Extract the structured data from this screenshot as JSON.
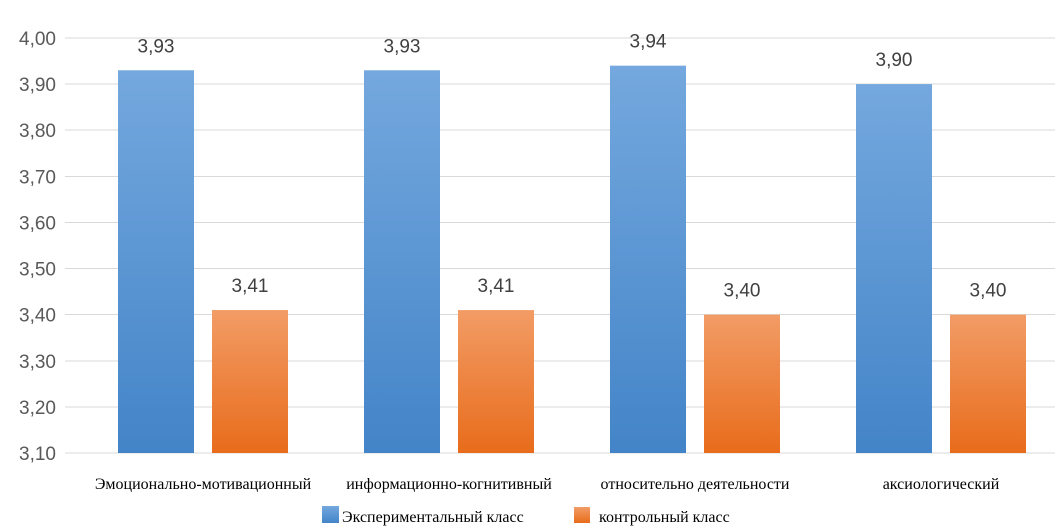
{
  "chart_data": {
    "type": "bar",
    "categories": [
      "Эмоционально-мотивационный",
      "информационно-когнитивный",
      "относительно деятельности",
      "аксиологический"
    ],
    "series": [
      {
        "name": "Экспериментальный класс",
        "values": [
          3.93,
          3.93,
          3.94,
          3.9
        ],
        "labels": [
          "3,93",
          "3,93",
          "3,94",
          "3,90"
        ],
        "color": "#5b9bd5"
      },
      {
        "name": "контрольный класс",
        "values": [
          3.41,
          3.41,
          3.4,
          3.4
        ],
        "labels": [
          "3,41",
          "3,41",
          "3,40",
          "3,40"
        ],
        "color": "#ed7d31"
      }
    ],
    "ylim": [
      3.1,
      4.0
    ],
    "yticks": [
      4.0,
      3.9,
      3.8,
      3.7,
      3.6,
      3.5,
      3.4,
      3.3,
      3.2,
      3.1
    ],
    "ytick_labels": [
      "4,00",
      "3,90",
      "3,80",
      "3,70",
      "3,60",
      "3,50",
      "3,40",
      "3,30",
      "3,20",
      "3,10"
    ],
    "grid": true,
    "legend": "bottom"
  }
}
